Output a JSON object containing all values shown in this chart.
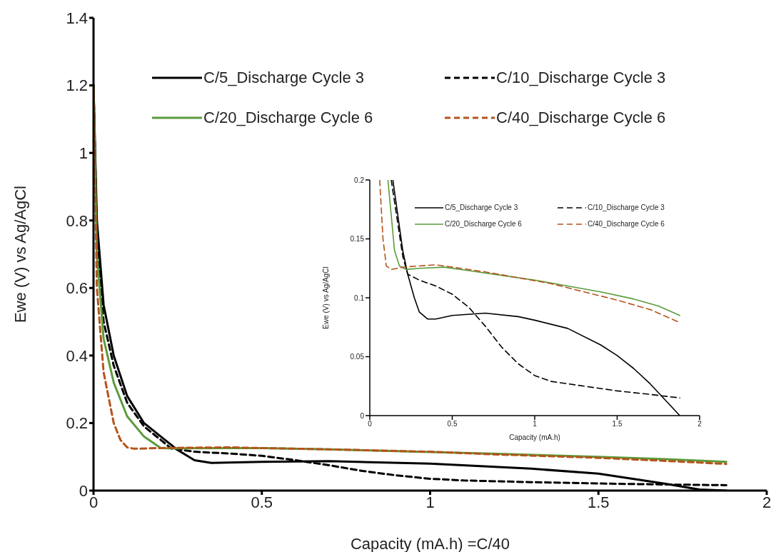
{
  "chart_data": [
    {
      "type": "line",
      "xlabel": "Capacity (mA.h) =C/40",
      "ylabel": "Ewe (V) vs Ag/AgCl",
      "xlim": [
        0,
        2
      ],
      "xticks": [
        0,
        0.5,
        1,
        1.5,
        2
      ],
      "ylim": [
        0,
        1.4
      ],
      "yticks": [
        0,
        0.2,
        0.4,
        0.6,
        0.8,
        1,
        1.2,
        1.4
      ],
      "legend": "top",
      "marker": "none",
      "series": [
        {
          "name": "C/5_Discharge Cycle 3",
          "color": "#000000",
          "line_style": "solid",
          "x": [
            0,
            0.01,
            0.03,
            0.06,
            0.1,
            0.15,
            0.2,
            0.25,
            0.3,
            0.35,
            0.5,
            0.7,
            1.0,
            1.3,
            1.5,
            1.7,
            1.8,
            1.88
          ],
          "values": [
            1.2,
            0.8,
            0.55,
            0.4,
            0.28,
            0.2,
            0.16,
            0.12,
            0.09,
            0.082,
            0.085,
            0.087,
            0.08,
            0.065,
            0.05,
            0.02,
            0.003,
            0
          ]
        },
        {
          "name": "C/10_Discharge Cycle 3",
          "color": "#000000",
          "line_style": "dashed",
          "x": [
            0,
            0.01,
            0.03,
            0.06,
            0.1,
            0.15,
            0.2,
            0.23,
            0.3,
            0.4,
            0.5,
            0.6,
            0.7,
            0.8,
            0.9,
            1.0,
            1.1,
            1.3,
            1.5,
            1.7,
            1.88
          ],
          "values": [
            1.2,
            0.75,
            0.5,
            0.37,
            0.26,
            0.19,
            0.15,
            0.125,
            0.115,
            0.11,
            0.103,
            0.09,
            0.075,
            0.058,
            0.045,
            0.035,
            0.03,
            0.025,
            0.021,
            0.018,
            0.016
          ]
        },
        {
          "name": "C/20_Discharge Cycle 6",
          "color": "#5b9b3c",
          "line_style": "solid",
          "x": [
            0,
            0.01,
            0.03,
            0.06,
            0.1,
            0.15,
            0.2,
            0.25,
            0.4,
            0.5,
            0.7,
            1.0,
            1.2,
            1.5,
            1.7,
            1.88
          ],
          "values": [
            1.2,
            0.7,
            0.45,
            0.32,
            0.22,
            0.16,
            0.126,
            0.125,
            0.126,
            0.126,
            0.122,
            0.114,
            0.109,
            0.1,
            0.093,
            0.085
          ]
        },
        {
          "name": "C/40_Discharge Cycle 6",
          "color": "#b5531b",
          "line_style": "dashed",
          "x": [
            0,
            0.01,
            0.03,
            0.06,
            0.08,
            0.1,
            0.12,
            0.2,
            0.4,
            0.5,
            0.7,
            1.0,
            1.2,
            1.5,
            1.7,
            1.88
          ],
          "values": [
            1.2,
            0.6,
            0.35,
            0.2,
            0.15,
            0.128,
            0.124,
            0.126,
            0.128,
            0.126,
            0.122,
            0.115,
            0.107,
            0.097,
            0.088,
            0.079
          ]
        }
      ]
    },
    {
      "type": "line",
      "xlabel": "Capacity (mA.h)",
      "ylabel": "Ewe (V) vs Ag/AgCl",
      "xlim": [
        0,
        2
      ],
      "xticks": [
        0,
        0.5,
        1,
        1.5,
        2
      ],
      "ylim": [
        0,
        0.2
      ],
      "yticks": [
        0,
        0.05,
        0.1,
        0.15,
        0.2
      ],
      "legend": "top",
      "marker": "none",
      "series": [
        {
          "name": "C/5_Discharge Cycle 3",
          "color": "#000000",
          "line_style": "solid",
          "x": [
            0.14,
            0.2,
            0.23,
            0.27,
            0.3,
            0.35,
            0.4,
            0.5,
            0.7,
            0.9,
            1.0,
            1.2,
            1.4,
            1.5,
            1.6,
            1.7,
            1.8,
            1.88
          ],
          "values": [
            0.2,
            0.14,
            0.12,
            0.1,
            0.088,
            0.082,
            0.082,
            0.085,
            0.087,
            0.084,
            0.081,
            0.074,
            0.06,
            0.051,
            0.04,
            0.027,
            0.012,
            0
          ]
        },
        {
          "name": "C/10_Discharge Cycle 3",
          "color": "#000000",
          "line_style": "dashed",
          "x": [
            0.13,
            0.2,
            0.23,
            0.3,
            0.4,
            0.5,
            0.6,
            0.7,
            0.8,
            0.9,
            1.0,
            1.1,
            1.3,
            1.5,
            1.7,
            1.88
          ],
          "values": [
            0.2,
            0.135,
            0.12,
            0.115,
            0.11,
            0.103,
            0.092,
            0.076,
            0.058,
            0.044,
            0.034,
            0.029,
            0.025,
            0.021,
            0.018,
            0.015
          ]
        },
        {
          "name": "C/20_Discharge Cycle 6",
          "color": "#5b9b3c",
          "line_style": "solid",
          "x": [
            0.11,
            0.15,
            0.18,
            0.22,
            0.3,
            0.45,
            0.6,
            0.8,
            1.0,
            1.2,
            1.4,
            1.6,
            1.75,
            1.88
          ],
          "values": [
            0.2,
            0.14,
            0.127,
            0.124,
            0.125,
            0.126,
            0.123,
            0.119,
            0.115,
            0.11,
            0.105,
            0.099,
            0.093,
            0.085
          ]
        },
        {
          "name": "C/40_Discharge Cycle 6",
          "color": "#b5531b",
          "line_style": "dashed",
          "x": [
            0.06,
            0.08,
            0.1,
            0.13,
            0.2,
            0.4,
            0.5,
            0.7,
            0.9,
            1.1,
            1.3,
            1.5,
            1.7,
            1.88
          ],
          "values": [
            0.2,
            0.15,
            0.127,
            0.124,
            0.126,
            0.128,
            0.126,
            0.122,
            0.117,
            0.112,
            0.105,
            0.098,
            0.09,
            0.079
          ]
        }
      ]
    }
  ]
}
